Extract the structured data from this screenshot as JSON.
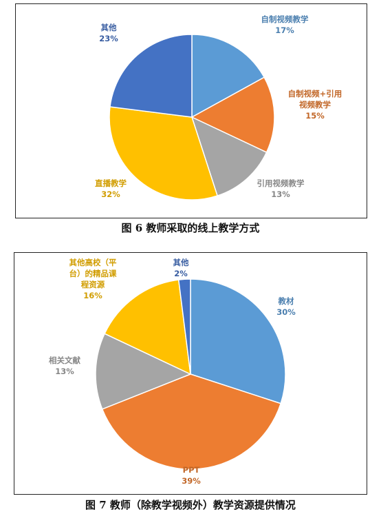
{
  "chart_data": [
    {
      "type": "pie",
      "caption": "图 6   教师采取的线上教学方式",
      "slices": [
        {
          "label": [
            "自制视频教学"
          ],
          "value": 17,
          "pct": "17%",
          "color": "#5B9BD5"
        },
        {
          "label": [
            "自制视频+引用",
            "视频教学"
          ],
          "value": 15,
          "pct": "15%",
          "color": "#ED7D31"
        },
        {
          "label": [
            "引用视频教学"
          ],
          "value": 13,
          "pct": "13%",
          "color": "#A5A5A5"
        },
        {
          "label": [
            "直播教学"
          ],
          "value": 32,
          "pct": "32%",
          "color": "#FFC000"
        },
        {
          "label": [
            "其他"
          ],
          "value": 23,
          "pct": "23%",
          "color": "#4472C4"
        }
      ]
    },
    {
      "type": "pie",
      "caption": "图 7   教师（除教学视频外）教学资源提供情况",
      "slices": [
        {
          "label": [
            "教材"
          ],
          "value": 30,
          "pct": "30%",
          "color": "#5B9BD5"
        },
        {
          "label": [
            "PPT"
          ],
          "value": 39,
          "pct": "39%",
          "color": "#ED7D31"
        },
        {
          "label": [
            "相关文献"
          ],
          "value": 13,
          "pct": "13%",
          "color": "#A5A5A5"
        },
        {
          "label": [
            "其他高校（平",
            "台）的精品课",
            "程资源"
          ],
          "value": 16,
          "pct": "16%",
          "color": "#FFC000"
        },
        {
          "label": [
            "其他"
          ],
          "value": 2,
          "pct": "2%",
          "color": "#4472C4"
        }
      ]
    }
  ]
}
